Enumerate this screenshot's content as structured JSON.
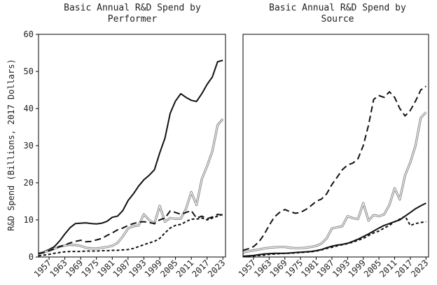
{
  "chart_data": [
    {
      "type": "line",
      "title": "Basic Annual R&D Spend by Performer",
      "title_lines": [
        "Basic Annual R&D Spend by",
        "Performer"
      ],
      "ylabel": "R&D Spend (Billions, 2017 Dollars)",
      "xlabel": "",
      "xlim": [
        1953,
        2024
      ],
      "ylim": [
        0,
        60
      ],
      "yticks": [
        "0",
        "10",
        "20",
        "30",
        "40",
        "50",
        "60"
      ],
      "xticks": [
        "1957",
        "1963",
        "1969",
        "1975",
        "1981",
        "1987",
        "1993",
        "1999",
        "2005",
        "2011",
        "2017",
        "2023"
      ],
      "grid": false,
      "x": [
        1953,
        1955,
        1957,
        1959,
        1961,
        1963,
        1965,
        1967,
        1969,
        1971,
        1973,
        1975,
        1977,
        1979,
        1981,
        1983,
        1985,
        1987,
        1989,
        1991,
        1993,
        1995,
        1997,
        1999,
        2001,
        2003,
        2005,
        2007,
        2009,
        2011,
        2013,
        2015,
        2017,
        2019,
        2021,
        2023
      ],
      "series": [
        {
          "style": "solid-black",
          "color": "#111111",
          "values": [
            1.0,
            1.4,
            2.0,
            2.8,
            4.3,
            6.2,
            7.9,
            9.0,
            9.1,
            9.2,
            9.0,
            8.9,
            9.1,
            9.6,
            10.7,
            11.0,
            12.5,
            15.2,
            17.0,
            19.1,
            20.8,
            22.0,
            23.5,
            28.0,
            32.0,
            38.7,
            42.0,
            44.0,
            43.0,
            42.2,
            41.9,
            44.0,
            46.5,
            48.5,
            52.6,
            53.0
          ]
        },
        {
          "style": "double-gray",
          "color": "#8a8a8a",
          "values": [
            0.9,
            1.2,
            1.7,
            2.2,
            2.8,
            3.1,
            3.3,
            3.2,
            3.0,
            2.5,
            2.3,
            2.3,
            2.5,
            2.7,
            3.0,
            3.8,
            5.5,
            7.7,
            8.3,
            8.5,
            11.5,
            10.0,
            9.0,
            13.8,
            9.5,
            10.5,
            10.3,
            10.3,
            13.0,
            17.5,
            14.0,
            21.0,
            24.5,
            28.5,
            35.5,
            37.2
          ]
        },
        {
          "style": "long-dash",
          "color": "#111111",
          "values": [
            0.9,
            1.2,
            1.7,
            2.2,
            2.8,
            3.2,
            3.8,
            4.2,
            4.5,
            4.1,
            4.2,
            4.6,
            5.0,
            5.8,
            6.5,
            7.3,
            7.8,
            8.5,
            9.0,
            9.4,
            9.5,
            9.3,
            9.0,
            10.0,
            10.5,
            12.4,
            12.0,
            11.5,
            12.0,
            12.5,
            10.5,
            11.0,
            10.3,
            10.8,
            11.5,
            11.3
          ]
        },
        {
          "style": "short-dash",
          "color": "#111111",
          "values": [
            0.3,
            0.5,
            0.7,
            1.0,
            1.2,
            1.4,
            1.5,
            1.5,
            1.5,
            1.6,
            1.6,
            1.6,
            1.7,
            1.7,
            1.8,
            1.8,
            1.9,
            2.0,
            2.3,
            2.8,
            3.3,
            3.8,
            4.2,
            5.0,
            6.5,
            7.8,
            8.5,
            8.8,
            9.5,
            10.2,
            10.2,
            10.5,
            10.0,
            10.5,
            11.0,
            11.5
          ]
        }
      ]
    },
    {
      "type": "line",
      "title": "Basic Annual R&D Spend by Source",
      "title_lines": [
        "Basic Annual R&D Spend by",
        "Source"
      ],
      "xlabel": "",
      "xlim": [
        1953,
        2024
      ],
      "ylim": [
        0,
        60
      ],
      "xticks": [
        "1957",
        "1963",
        "1969",
        "1975",
        "1981",
        "1987",
        "1993",
        "1999",
        "2005",
        "2011",
        "2017",
        "2023"
      ],
      "grid": false,
      "x": [
        1953,
        1955,
        1957,
        1959,
        1961,
        1963,
        1965,
        1967,
        1969,
        1971,
        1973,
        1975,
        1977,
        1979,
        1981,
        1983,
        1985,
        1987,
        1989,
        1991,
        1993,
        1995,
        1997,
        1999,
        2001,
        2003,
        2005,
        2007,
        2009,
        2011,
        2013,
        2015,
        2017,
        2019,
        2021,
        2023
      ],
      "series": [
        {
          "style": "long-dash",
          "color": "#111111",
          "values": [
            1.8,
            2.2,
            2.8,
            4.0,
            6.0,
            8.5,
            10.8,
            12.0,
            12.8,
            12.2,
            11.8,
            12.0,
            12.8,
            13.8,
            15.0,
            15.6,
            17.0,
            19.5,
            21.5,
            23.5,
            24.8,
            25.3,
            26.5,
            30.0,
            35.5,
            42.5,
            43.5,
            43.0,
            44.5,
            43.0,
            40.0,
            38.0,
            39.5,
            42.0,
            45.0,
            46.0
          ]
        },
        {
          "style": "double-gray",
          "color": "#8a8a8a",
          "values": [
            1.2,
            1.5,
            1.8,
            2.0,
            2.3,
            2.5,
            2.6,
            2.7,
            2.7,
            2.5,
            2.4,
            2.4,
            2.5,
            2.7,
            3.0,
            3.6,
            5.0,
            7.7,
            8.0,
            8.3,
            11.0,
            10.5,
            10.2,
            14.5,
            9.8,
            11.3,
            11.0,
            11.5,
            14.0,
            18.5,
            15.5,
            22.0,
            25.5,
            30.0,
            37.5,
            39.0
          ]
        },
        {
          "style": "solid-black",
          "color": "#111111",
          "values": [
            0.2,
            0.3,
            0.4,
            0.6,
            0.8,
            0.9,
            1.0,
            1.0,
            1.0,
            1.1,
            1.2,
            1.3,
            1.4,
            1.5,
            1.7,
            2.0,
            2.5,
            2.9,
            3.2,
            3.4,
            3.7,
            4.2,
            4.8,
            5.5,
            6.2,
            7.0,
            7.8,
            8.5,
            9.0,
            9.5,
            10.0,
            11.0,
            12.0,
            13.0,
            13.8,
            14.5
          ]
        },
        {
          "style": "short-dash",
          "color": "#111111",
          "values": [
            0.1,
            0.2,
            0.3,
            0.4,
            0.5,
            0.7,
            0.8,
            0.9,
            1.0,
            1.0,
            1.1,
            1.2,
            1.3,
            1.4,
            1.6,
            1.9,
            2.3,
            2.6,
            3.0,
            3.3,
            3.6,
            4.0,
            4.5,
            5.0,
            5.8,
            6.5,
            7.0,
            7.8,
            8.5,
            9.5,
            10.2,
            11.0,
            8.5,
            9.0,
            9.3,
            9.5
          ]
        }
      ]
    }
  ]
}
